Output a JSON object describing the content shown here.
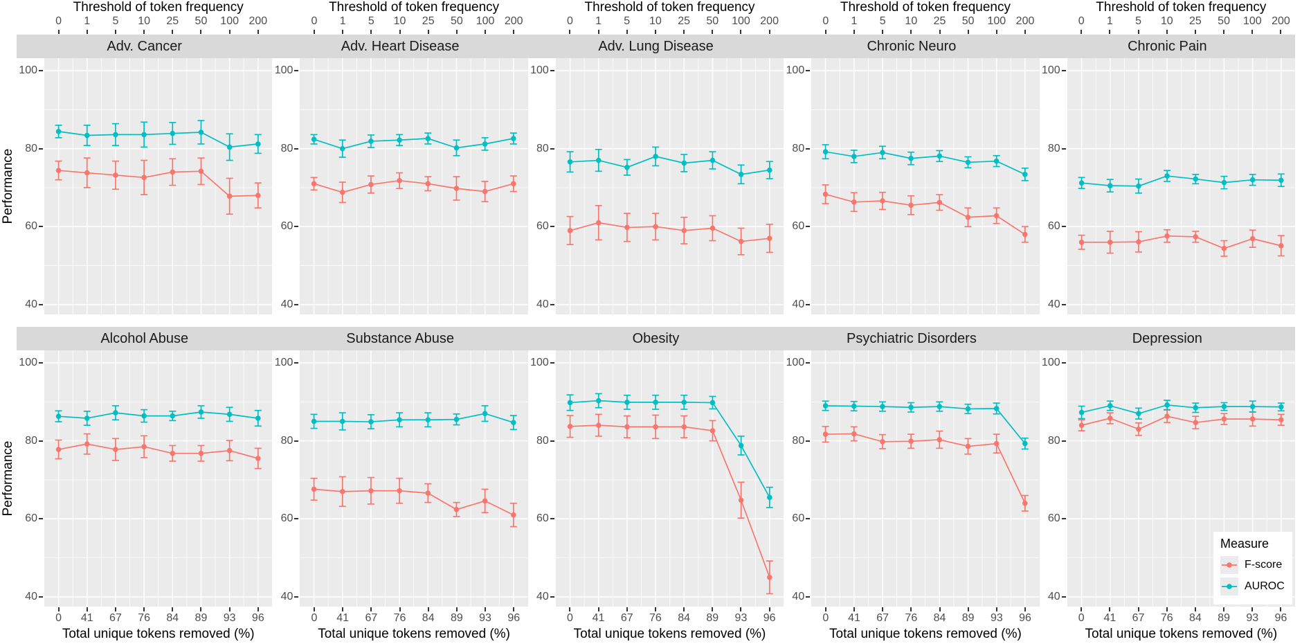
{
  "chart_data": {
    "type": "line",
    "facet_grid": {
      "rows": 2,
      "cols": 5
    },
    "top_axis_title": "Threshold of token frequency",
    "bottom_axis_title": "Total unique tokens removed (%)",
    "ylabel": "Performance",
    "x_top_ticklabels": [
      "0",
      "1",
      "5",
      "10",
      "25",
      "50",
      "100",
      "200"
    ],
    "x_bottom_ticklabels": [
      "0",
      "41",
      "67",
      "76",
      "84",
      "89",
      "93",
      "96"
    ],
    "y_ticks": [
      100,
      80,
      60,
      40
    ],
    "y_minor_ticks": [
      90,
      70,
      50
    ],
    "ylim": [
      37.5,
      103.2
    ],
    "grid": "white-on-gray",
    "legend": {
      "title": "Measure",
      "position": "bottom-right",
      "entries": [
        {
          "name": "F-score",
          "color": "#F8766D"
        },
        {
          "name": "AUROC",
          "color": "#00BFC4"
        }
      ]
    },
    "series_colors": {
      "F-score": "#F8766D",
      "AUROC": "#00BFC4"
    },
    "facets": [
      {
        "title": "Adv. Cancer",
        "row": 0,
        "series": [
          {
            "name": "F-score",
            "values": [
              74.4,
              73.8,
              73.2,
              72.6,
              74.0,
              74.2,
              67.8,
              68.0
            ],
            "errors": [
              2.4,
              3.8,
              3.6,
              4.4,
              3.4,
              3.4,
              4.6,
              3.2
            ]
          },
          {
            "name": "AUROC",
            "values": [
              84.4,
              83.4,
              83.6,
              83.6,
              83.9,
              84.2,
              80.4,
              81.2
            ],
            "errors": [
              1.6,
              2.6,
              2.8,
              3.2,
              2.8,
              3.0,
              3.4,
              2.4
            ]
          }
        ]
      },
      {
        "title": "Adv. Heart Disease",
        "row": 0,
        "series": [
          {
            "name": "F-score",
            "values": [
              71.0,
              68.8,
              70.8,
              71.8,
              71.0,
              69.8,
              69.0,
              71.0
            ],
            "errors": [
              1.6,
              2.6,
              2.2,
              2.0,
              1.8,
              3.0,
              2.6,
              2.0
            ]
          },
          {
            "name": "AUROC",
            "values": [
              82.4,
              80.0,
              81.9,
              82.2,
              82.6,
              80.2,
              81.2,
              82.6
            ],
            "errors": [
              1.2,
              2.2,
              1.6,
              1.4,
              1.4,
              2.0,
              1.6,
              1.4
            ]
          }
        ]
      },
      {
        "title": "Adv. Lung Disease",
        "row": 0,
        "series": [
          {
            "name": "F-score",
            "values": [
              59.0,
              61.0,
              59.8,
              60.0,
              59.0,
              59.6,
              56.2,
              57.0
            ],
            "errors": [
              3.6,
              4.4,
              3.6,
              3.4,
              3.4,
              3.2,
              3.4,
              3.6
            ]
          },
          {
            "name": "AUROC",
            "values": [
              76.6,
              77.0,
              75.2,
              78.0,
              76.3,
              77.0,
              73.4,
              74.5
            ],
            "errors": [
              2.6,
              2.8,
              2.0,
              2.4,
              2.2,
              2.2,
              2.4,
              2.2
            ]
          }
        ]
      },
      {
        "title": "Chronic Neuro",
        "row": 0,
        "series": [
          {
            "name": "F-score",
            "values": [
              68.3,
              66.3,
              66.6,
              65.5,
              66.2,
              62.4,
              62.8,
              58.0
            ],
            "errors": [
              2.4,
              2.4,
              2.2,
              2.4,
              2.0,
              2.4,
              2.0,
              2.0
            ]
          },
          {
            "name": "AUROC",
            "values": [
              79.2,
              78.0,
              79.0,
              77.5,
              78.1,
              76.5,
              76.8,
              73.4
            ],
            "errors": [
              1.8,
              1.6,
              1.6,
              1.6,
              1.4,
              1.4,
              1.4,
              1.6
            ]
          }
        ]
      },
      {
        "title": "Chronic Pain",
        "row": 0,
        "series": [
          {
            "name": "F-score",
            "values": [
              56.0,
              56.0,
              56.1,
              57.6,
              57.4,
              54.4,
              56.9,
              55.1
            ],
            "errors": [
              1.8,
              2.8,
              2.6,
              1.6,
              1.4,
              2.0,
              2.2,
              2.6
            ]
          },
          {
            "name": "AUROC",
            "values": [
              71.2,
              70.5,
              70.4,
              73.0,
              72.2,
              71.3,
              72.0,
              71.9
            ],
            "errors": [
              1.4,
              1.6,
              1.8,
              1.4,
              1.2,
              1.6,
              1.4,
              1.6
            ]
          }
        ]
      },
      {
        "title": "Alcohol Abuse",
        "row": 1,
        "series": [
          {
            "name": "F-score",
            "values": [
              77.8,
              79.2,
              77.8,
              78.5,
              76.8,
              76.8,
              77.5,
              75.5
            ],
            "errors": [
              2.4,
              2.6,
              2.8,
              2.8,
              2.0,
              2.0,
              2.6,
              2.6
            ]
          },
          {
            "name": "AUROC",
            "values": [
              86.3,
              85.8,
              87.2,
              86.4,
              86.4,
              87.4,
              86.8,
              85.8
            ],
            "errors": [
              1.4,
              1.8,
              1.8,
              1.6,
              1.2,
              1.6,
              1.8,
              2.0
            ]
          }
        ]
      },
      {
        "title": "Substance Abuse",
        "row": 1,
        "series": [
          {
            "name": "F-score",
            "values": [
              67.6,
              67.0,
              67.2,
              67.2,
              66.6,
              62.4,
              64.6,
              61.0
            ],
            "errors": [
              2.8,
              3.8,
              3.4,
              3.2,
              2.4,
              1.8,
              3.0,
              3.0
            ]
          },
          {
            "name": "AUROC",
            "values": [
              85.0,
              85.0,
              84.9,
              85.4,
              85.4,
              85.5,
              87.0,
              84.7
            ],
            "errors": [
              1.8,
              2.2,
              1.8,
              1.8,
              1.8,
              1.4,
              2.0,
              1.8
            ]
          }
        ]
      },
      {
        "title": "Obesity",
        "row": 1,
        "series": [
          {
            "name": "F-score",
            "values": [
              83.7,
              84.0,
              83.6,
              83.6,
              83.6,
              82.6,
              64.8,
              45.0
            ],
            "errors": [
              2.8,
              2.8,
              2.8,
              3.0,
              2.8,
              2.6,
              4.6,
              4.2
            ]
          },
          {
            "name": "AUROC",
            "values": [
              89.8,
              90.3,
              89.9,
              89.9,
              89.9,
              89.8,
              78.8,
              65.5
            ],
            "errors": [
              2.0,
              1.8,
              1.8,
              1.8,
              1.8,
              1.6,
              2.4,
              2.6
            ]
          }
        ]
      },
      {
        "title": "Psychiatric Disorders",
        "row": 1,
        "series": [
          {
            "name": "F-score",
            "values": [
              81.7,
              81.8,
              79.8,
              79.9,
              80.3,
              78.6,
              79.3,
              64.0
            ],
            "errors": [
              2.0,
              1.8,
              1.8,
              1.8,
              2.2,
              2.0,
              2.4,
              2.0
            ]
          },
          {
            "name": "AUROC",
            "values": [
              89.0,
              88.9,
              88.8,
              88.6,
              88.8,
              88.2,
              88.3,
              79.3
            ],
            "errors": [
              1.2,
              1.2,
              1.2,
              1.2,
              1.2,
              1.2,
              1.4,
              1.4
            ]
          }
        ]
      },
      {
        "title": "Depression",
        "row": 1,
        "series": [
          {
            "name": "F-score",
            "values": [
              84.0,
              85.8,
              83.0,
              86.3,
              84.7,
              85.6,
              85.6,
              85.4
            ],
            "errors": [
              1.4,
              1.4,
              1.6,
              1.6,
              1.6,
              1.4,
              1.8,
              1.4
            ]
          },
          {
            "name": "AUROC",
            "values": [
              87.3,
              89.0,
              87.0,
              89.2,
              88.5,
              88.8,
              88.8,
              88.7
            ],
            "errors": [
              1.6,
              1.2,
              1.4,
              1.2,
              1.2,
              1.0,
              1.4,
              1.0
            ]
          }
        ]
      }
    ]
  },
  "style_colors": {
    "panel_background": "#EBEBEB",
    "strip_background": "#D9D9D9",
    "gridline": "#FFFFFF",
    "tick_text": "#4D4D4D",
    "axis_title_text": "#000000"
  }
}
